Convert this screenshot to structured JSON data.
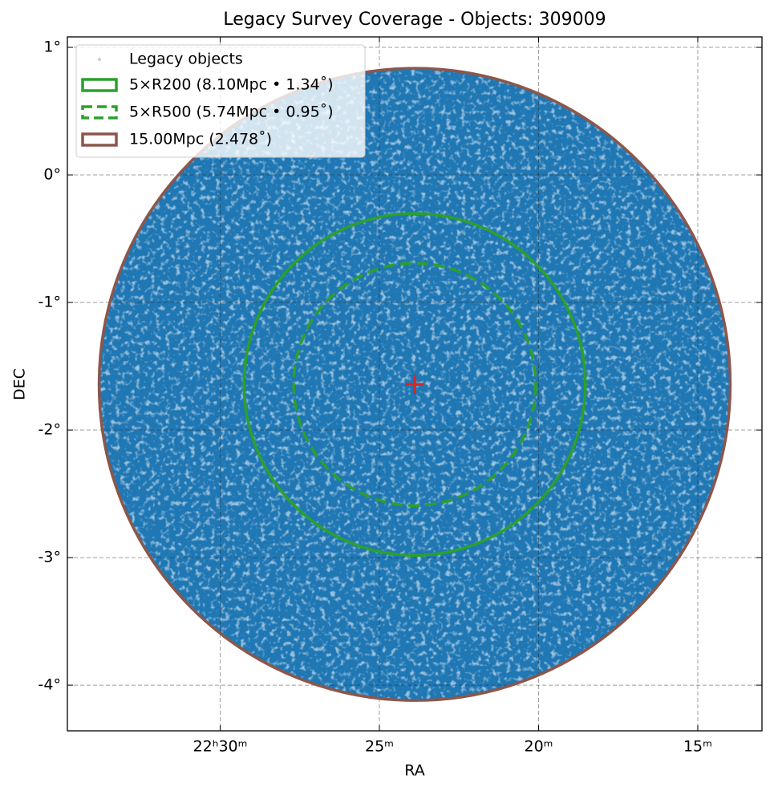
{
  "chart_data": {
    "type": "scatter",
    "title": "Legacy Survey Coverage - Objects: 309009",
    "xlabel": "RA",
    "ylabel": "DEC",
    "xlim": [
      338.7,
      333.246
    ],
    "ylim": [
      -4.358,
      1.082
    ],
    "xticks": [
      {
        "value": 337.5,
        "label": "22ʰ30ᵐ"
      },
      {
        "value": 336.25,
        "label": "25ᵐ"
      },
      {
        "value": 335,
        "label": "20ᵐ"
      },
      {
        "value": 333.75,
        "label": "15ᵐ"
      }
    ],
    "yticks": [
      {
        "value": 1,
        "label": "1°"
      },
      {
        "value": 0,
        "label": "0°"
      },
      {
        "value": -1,
        "label": "-1°"
      },
      {
        "value": -2,
        "label": "-2°"
      },
      {
        "value": -3,
        "label": "-3°"
      },
      {
        "value": -4,
        "label": "-4°"
      }
    ],
    "grid": true,
    "legend": "upper left",
    "objects": {
      "name": "Legacy objects",
      "color": "#1f77b4"
    },
    "center": {
      "x": 335.973,
      "y": -1.642,
      "color": "#d62728"
    },
    "circles": [
      {
        "name": "5×R200 (8.10Mpc • 1.34˚)",
        "radius": 1.34,
        "color": "#2ca02c",
        "dashed": false
      },
      {
        "name": "5×R500 (5.74Mpc • 0.95˚)",
        "radius": 0.95,
        "color": "#2ca02c",
        "dashed": true
      },
      {
        "name": "15.00Mpc (2.478˚)",
        "radius": 2.478,
        "color": "#8c564b",
        "dashed": false
      }
    ]
  }
}
